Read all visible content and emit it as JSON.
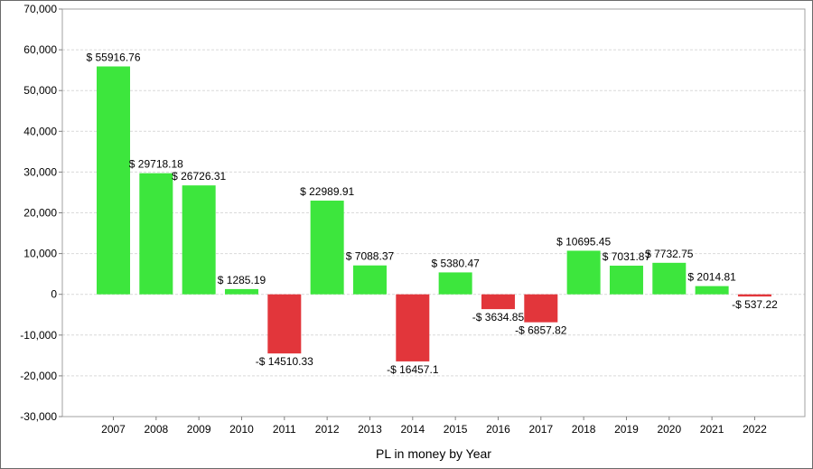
{
  "chart_data": {
    "type": "bar",
    "title": "",
    "xlabel": "PL in money by Year",
    "ylabel": "",
    "ylim": [
      -30000,
      70000
    ],
    "yticks": [
      70000,
      60000,
      50000,
      40000,
      30000,
      20000,
      10000,
      0,
      -10000,
      -20000,
      -30000
    ],
    "ytick_labels": [
      "70,000",
      "60,000",
      "50,000",
      "40,000",
      "30,000",
      "20,000",
      "10,000",
      "0",
      "-10,000",
      "-20,000",
      "-30,000"
    ],
    "grid": true,
    "legend": "none",
    "categories": [
      "2007",
      "2008",
      "2009",
      "2010",
      "2011",
      "2012",
      "2013",
      "2014",
      "2015",
      "2016",
      "2017",
      "2018",
      "2019",
      "2020",
      "2021",
      "2022"
    ],
    "values": [
      55916.76,
      29718.18,
      26726.31,
      1285.19,
      -14510.33,
      22989.91,
      7088.37,
      -16457.1,
      5380.47,
      -3634.85,
      -6857.82,
      10695.45,
      7031.87,
      7732.75,
      2014.81,
      -537.22
    ],
    "data_labels": [
      "$ 55916.76",
      "$ 29718.18",
      "$ 26726.31",
      "$ 1285.19",
      "-$ 14510.33",
      "$ 22989.91",
      "$ 7088.37",
      "-$ 16457.1",
      "$ 5380.47",
      "-$ 3634.85",
      "-$ 6857.82",
      "$ 10695.45",
      "$ 7031.87",
      "$ 7732.75",
      "$ 2014.81",
      "-$ 537.22"
    ],
    "colors": {
      "positive": "#3de63d",
      "negative": "#e2363b",
      "grid": "#d9d9d9",
      "axis": "#a0a0a0"
    }
  }
}
